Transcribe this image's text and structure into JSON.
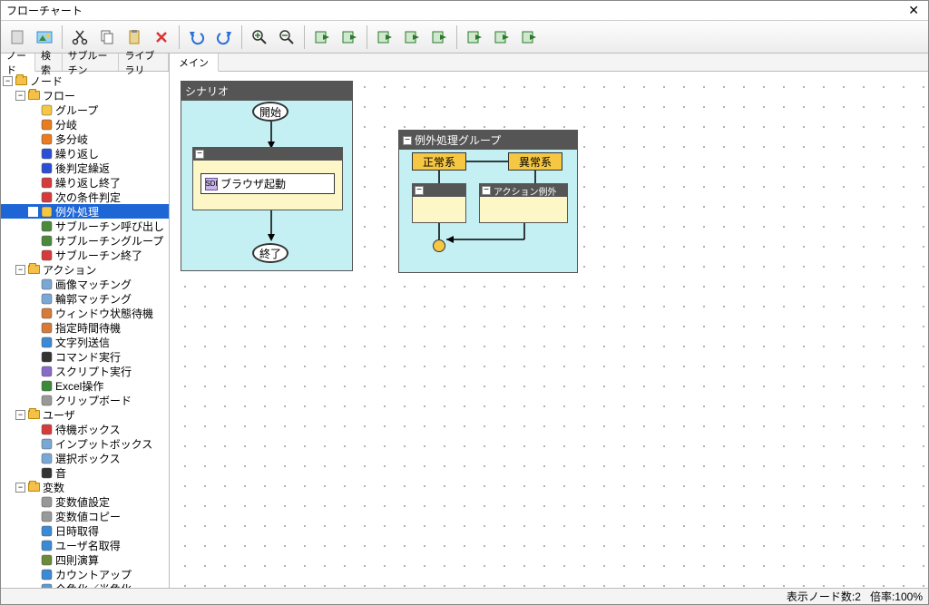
{
  "window": {
    "title": "フローチャート"
  },
  "toolbar_icons": [
    {
      "name": "new-doc-icon",
      "color": "#888"
    },
    {
      "name": "picture-icon",
      "color": "#3aa0d8"
    },
    {
      "name": "cut-icon",
      "color": "#333"
    },
    {
      "name": "copy-icon",
      "color": "#666"
    },
    {
      "name": "paste-icon",
      "color": "#c89a3a"
    },
    {
      "name": "delete-icon",
      "color": "#d33"
    },
    {
      "name": "undo-icon",
      "color": "#2a6fd6"
    },
    {
      "name": "redo-icon",
      "color": "#2a6fd6"
    },
    {
      "name": "zoom-in-icon",
      "color": "#2a7a2a"
    },
    {
      "name": "zoom-out-icon",
      "color": "#2a7a2a"
    },
    {
      "name": "layer1-icon",
      "color": "#2a7a2a"
    },
    {
      "name": "layer2-icon",
      "color": "#2a7a2a"
    },
    {
      "name": "import-icon",
      "color": "#2a7a2a"
    },
    {
      "name": "export1-icon",
      "color": "#2a7a2a"
    },
    {
      "name": "export2-icon",
      "color": "#2a7a2a"
    },
    {
      "name": "copydoc-icon",
      "color": "#2a7a2a"
    },
    {
      "name": "moveldoc-icon",
      "color": "#2a7a2a"
    },
    {
      "name": "mover-icon",
      "color": "#2a7a2a"
    }
  ],
  "side_tabs": [
    "ノード",
    "検索",
    "サブルーチン",
    "ライブラリ"
  ],
  "active_side_tab": 0,
  "canvas_tabs": [
    "メイン"
  ],
  "active_canvas_tab": 0,
  "tree": [
    {
      "d": 0,
      "t": "ノード",
      "exp": "-",
      "folder": true
    },
    {
      "d": 1,
      "t": "フロー",
      "exp": "-",
      "folder": true
    },
    {
      "d": 2,
      "t": "グループ",
      "ic": "#f5c742"
    },
    {
      "d": 2,
      "t": "分岐",
      "ic": "#e87c1e"
    },
    {
      "d": 2,
      "t": "多分岐",
      "ic": "#e87c1e"
    },
    {
      "d": 2,
      "t": "繰り返し",
      "ic": "#2a4fd6"
    },
    {
      "d": 2,
      "t": "後判定繰返",
      "ic": "#2a4fd6"
    },
    {
      "d": 2,
      "t": "繰り返し終了",
      "ic": "#d63a3a"
    },
    {
      "d": 2,
      "t": "次の条件判定",
      "ic": "#d63a3a"
    },
    {
      "d": 2,
      "t": "例外処理",
      "ic": "#f5c742",
      "sel": true
    },
    {
      "d": 2,
      "t": "サブルーチン呼び出し",
      "ic": "#4a8a3a"
    },
    {
      "d": 2,
      "t": "サブルーチングループ",
      "ic": "#4a8a3a"
    },
    {
      "d": 2,
      "t": "サブルーチン終了",
      "ic": "#d63a3a"
    },
    {
      "d": 1,
      "t": "アクション",
      "exp": "-",
      "folder": true
    },
    {
      "d": 2,
      "t": "画像マッチング",
      "ic": "#7aa8d6"
    },
    {
      "d": 2,
      "t": "輪郭マッチング",
      "ic": "#7aa8d6"
    },
    {
      "d": 2,
      "t": "ウィンドウ状態待機",
      "ic": "#d67a3a"
    },
    {
      "d": 2,
      "t": "指定時間待機",
      "ic": "#d67a3a"
    },
    {
      "d": 2,
      "t": "文字列送信",
      "ic": "#3a8ad6"
    },
    {
      "d": 2,
      "t": "コマンド実行",
      "ic": "#333"
    },
    {
      "d": 2,
      "t": "スクリプト実行",
      "ic": "#8a6ac8"
    },
    {
      "d": 2,
      "t": "Excel操作",
      "ic": "#3a8a3a"
    },
    {
      "d": 2,
      "t": "クリップボード",
      "ic": "#999"
    },
    {
      "d": 1,
      "t": "ユーザ",
      "exp": "-",
      "folder": true
    },
    {
      "d": 2,
      "t": "待機ボックス",
      "ic": "#d63a3a"
    },
    {
      "d": 2,
      "t": "インプットボックス",
      "ic": "#7aa8d6"
    },
    {
      "d": 2,
      "t": "選択ボックス",
      "ic": "#7aa8d6"
    },
    {
      "d": 2,
      "t": "音",
      "ic": "#333"
    },
    {
      "d": 1,
      "t": "変数",
      "exp": "-",
      "folder": true
    },
    {
      "d": 2,
      "t": "変数値設定",
      "ic": "#999"
    },
    {
      "d": 2,
      "t": "変数値コピー",
      "ic": "#999"
    },
    {
      "d": 2,
      "t": "日時取得",
      "ic": "#3a8ad6"
    },
    {
      "d": 2,
      "t": "ユーザ名取得",
      "ic": "#3a8ad6"
    },
    {
      "d": 2,
      "t": "四則演算",
      "ic": "#6a8a3a"
    },
    {
      "d": 2,
      "t": "カウントアップ",
      "ic": "#3a8ad6"
    },
    {
      "d": 2,
      "t": "全角化／半角化",
      "ic": "#5a9ad6"
    }
  ],
  "scenario": {
    "title": "シナリオ",
    "start": "開始",
    "end": "終了",
    "action_label": "ブラウザ起動"
  },
  "exception_group": {
    "title": "例外処理グループ",
    "normal": "正常系",
    "abnormal": "異常系",
    "action_ex": "アクション例外"
  },
  "status": {
    "nodes_label": "表示ノード数:",
    "nodes": "2",
    "zoom_label": "倍率:",
    "zoom": "100%"
  },
  "colors": {
    "group_bg": "#c4f0f4",
    "group_hdr": "#555",
    "inner_bg": "#fdf6c7",
    "yellow": "#f5c742",
    "selection": "#1e66d6"
  }
}
